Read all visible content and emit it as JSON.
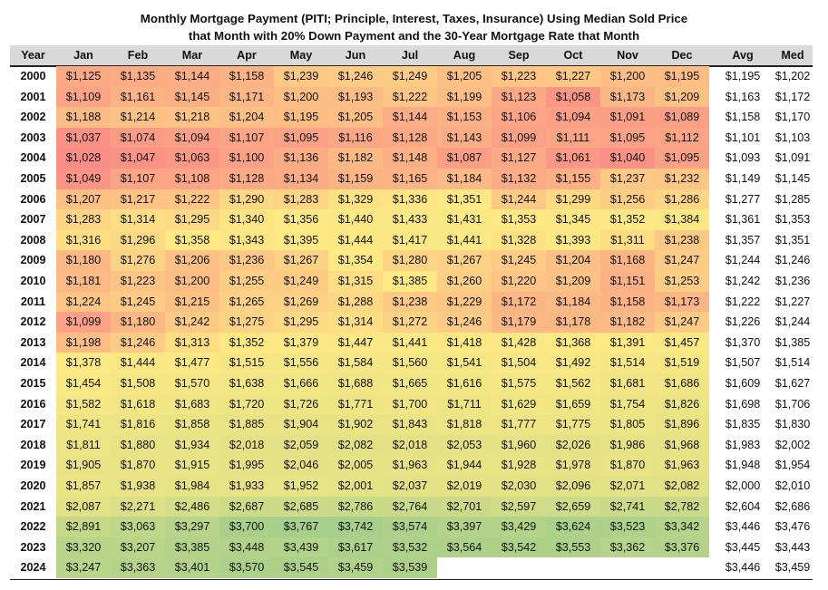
{
  "title": {
    "line1": "Monthly Mortgage Payment (PITI; Principle, Interest, Taxes, Insurance) Using Median Sold Price",
    "line2": "that Month with 20% Down Payment and the 30-Year Mortgage Rate that Month"
  },
  "colors": {
    "low": "#fa8e86",
    "mid": "#fde984",
    "high": "#a6cf8b",
    "header_bg": "#d9d9d9"
  },
  "chart_data": {
    "type": "heatmap",
    "title": "Monthly Mortgage Payment (PITI; Principle, Interest, Taxes, Insurance) Using Median Sold Price that Month with 20% Down Payment and the 30-Year Mortgage Rate that Month",
    "columns": [
      "Year",
      "Jan",
      "Feb",
      "Mar",
      "Apr",
      "May",
      "Jun",
      "Jul",
      "Aug",
      "Sep",
      "Oct",
      "Nov",
      "Dec",
      "Avg",
      "Med"
    ],
    "rows": [
      {
        "year": "2000",
        "months": [
          "$1,125",
          "$1,135",
          "$1,144",
          "$1,158",
          "$1,239",
          "$1,246",
          "$1,249",
          "$1,205",
          "$1,223",
          "$1,227",
          "$1,200",
          "$1,195"
        ],
        "avg": "$1,195",
        "med": "$1,202"
      },
      {
        "year": "2001",
        "months": [
          "$1,109",
          "$1,161",
          "$1,145",
          "$1,171",
          "$1,200",
          "$1,193",
          "$1,222",
          "$1,199",
          "$1,123",
          "$1,058",
          "$1,173",
          "$1,209"
        ],
        "avg": "$1,163",
        "med": "$1,172"
      },
      {
        "year": "2002",
        "months": [
          "$1,188",
          "$1,214",
          "$1,218",
          "$1,204",
          "$1,195",
          "$1,205",
          "$1,144",
          "$1,153",
          "$1,106",
          "$1,094",
          "$1,091",
          "$1,089"
        ],
        "avg": "$1,158",
        "med": "$1,170"
      },
      {
        "year": "2003",
        "months": [
          "$1,037",
          "$1,074",
          "$1,094",
          "$1,107",
          "$1,095",
          "$1,116",
          "$1,128",
          "$1,143",
          "$1,099",
          "$1,111",
          "$1,095",
          "$1,112"
        ],
        "avg": "$1,101",
        "med": "$1,103"
      },
      {
        "year": "2004",
        "months": [
          "$1,028",
          "$1,047",
          "$1,063",
          "$1,100",
          "$1,136",
          "$1,182",
          "$1,148",
          "$1,087",
          "$1,127",
          "$1,061",
          "$1,040",
          "$1,095"
        ],
        "avg": "$1,093",
        "med": "$1,091"
      },
      {
        "year": "2005",
        "months": [
          "$1,049",
          "$1,107",
          "$1,108",
          "$1,128",
          "$1,134",
          "$1,159",
          "$1,165",
          "$1,184",
          "$1,132",
          "$1,155",
          "$1,237",
          "$1,232"
        ],
        "avg": "$1,149",
        "med": "$1,145"
      },
      {
        "year": "2006",
        "months": [
          "$1,207",
          "$1,217",
          "$1,222",
          "$1,290",
          "$1,283",
          "$1,329",
          "$1,336",
          "$1,351",
          "$1,244",
          "$1,299",
          "$1,256",
          "$1,286"
        ],
        "avg": "$1,277",
        "med": "$1,285"
      },
      {
        "year": "2007",
        "months": [
          "$1,283",
          "$1,314",
          "$1,295",
          "$1,340",
          "$1,356",
          "$1,440",
          "$1,433",
          "$1,431",
          "$1,353",
          "$1,345",
          "$1,352",
          "$1,384"
        ],
        "avg": "$1,361",
        "med": "$1,353"
      },
      {
        "year": "2008",
        "months": [
          "$1,316",
          "$1,296",
          "$1,358",
          "$1,343",
          "$1,395",
          "$1,444",
          "$1,417",
          "$1,441",
          "$1,328",
          "$1,393",
          "$1,311",
          "$1,238"
        ],
        "avg": "$1,357",
        "med": "$1,351"
      },
      {
        "year": "2009",
        "months": [
          "$1,180",
          "$1,276",
          "$1,206",
          "$1,236",
          "$1,267",
          "$1,354",
          "$1,280",
          "$1,267",
          "$1,245",
          "$1,204",
          "$1,168",
          "$1,247"
        ],
        "avg": "$1,244",
        "med": "$1,246"
      },
      {
        "year": "2010",
        "months": [
          "$1,181",
          "$1,223",
          "$1,200",
          "$1,255",
          "$1,249",
          "$1,315",
          "$1,385",
          "$1,260",
          "$1,220",
          "$1,209",
          "$1,151",
          "$1,253"
        ],
        "avg": "$1,242",
        "med": "$1,236"
      },
      {
        "year": "2011",
        "months": [
          "$1,224",
          "$1,245",
          "$1,215",
          "$1,265",
          "$1,269",
          "$1,288",
          "$1,238",
          "$1,229",
          "$1,172",
          "$1,184",
          "$1,158",
          "$1,173"
        ],
        "avg": "$1,222",
        "med": "$1,227"
      },
      {
        "year": "2012",
        "months": [
          "$1,099",
          "$1,180",
          "$1,242",
          "$1,275",
          "$1,295",
          "$1,314",
          "$1,272",
          "$1,246",
          "$1,179",
          "$1,178",
          "$1,182",
          "$1,247"
        ],
        "avg": "$1,226",
        "med": "$1,244"
      },
      {
        "year": "2013",
        "months": [
          "$1,198",
          "$1,246",
          "$1,313",
          "$1,352",
          "$1,379",
          "$1,447",
          "$1,441",
          "$1,418",
          "$1,428",
          "$1,368",
          "$1,391",
          "$1,457"
        ],
        "avg": "$1,370",
        "med": "$1,385"
      },
      {
        "year": "2014",
        "months": [
          "$1,378",
          "$1,444",
          "$1,477",
          "$1,515",
          "$1,556",
          "$1,584",
          "$1,560",
          "$1,541",
          "$1,504",
          "$1,492",
          "$1,514",
          "$1,519"
        ],
        "avg": "$1,507",
        "med": "$1,514"
      },
      {
        "year": "2015",
        "months": [
          "$1,454",
          "$1,508",
          "$1,570",
          "$1,638",
          "$1,666",
          "$1,688",
          "$1,665",
          "$1,616",
          "$1,575",
          "$1,562",
          "$1,681",
          "$1,686"
        ],
        "avg": "$1,609",
        "med": "$1,627"
      },
      {
        "year": "2016",
        "months": [
          "$1,582",
          "$1,618",
          "$1,683",
          "$1,720",
          "$1,726",
          "$1,771",
          "$1,700",
          "$1,711",
          "$1,629",
          "$1,659",
          "$1,754",
          "$1,826"
        ],
        "avg": "$1,698",
        "med": "$1,706"
      },
      {
        "year": "2017",
        "months": [
          "$1,741",
          "$1,816",
          "$1,858",
          "$1,885",
          "$1,904",
          "$1,902",
          "$1,843",
          "$1,818",
          "$1,777",
          "$1,775",
          "$1,805",
          "$1,896"
        ],
        "avg": "$1,835",
        "med": "$1,830"
      },
      {
        "year": "2018",
        "months": [
          "$1,811",
          "$1,880",
          "$1,934",
          "$2,018",
          "$2,059",
          "$2,082",
          "$2,018",
          "$2,053",
          "$1,960",
          "$2,026",
          "$1,986",
          "$1,968"
        ],
        "avg": "$1,983",
        "med": "$2,002"
      },
      {
        "year": "2019",
        "months": [
          "$1,905",
          "$1,870",
          "$1,915",
          "$1,995",
          "$2,046",
          "$2,005",
          "$1,963",
          "$1,944",
          "$1,928",
          "$1,978",
          "$1,870",
          "$1,963"
        ],
        "avg": "$1,948",
        "med": "$1,954"
      },
      {
        "year": "2020",
        "months": [
          "$1,857",
          "$1,938",
          "$1,984",
          "$1,933",
          "$1,952",
          "$2,001",
          "$2,037",
          "$2,019",
          "$2,030",
          "$2,096",
          "$2,071",
          "$2,082"
        ],
        "avg": "$2,000",
        "med": "$2,010"
      },
      {
        "year": "2021",
        "months": [
          "$2,087",
          "$2,271",
          "$2,486",
          "$2,687",
          "$2,685",
          "$2,786",
          "$2,764",
          "$2,701",
          "$2,597",
          "$2,659",
          "$2,741",
          "$2,782"
        ],
        "avg": "$2,604",
        "med": "$2,686"
      },
      {
        "year": "2022",
        "months": [
          "$2,891",
          "$3,063",
          "$3,297",
          "$3,700",
          "$3,767",
          "$3,742",
          "$3,574",
          "$3,397",
          "$3,429",
          "$3,624",
          "$3,523",
          "$3,342"
        ],
        "avg": "$3,446",
        "med": "$3,476"
      },
      {
        "year": "2023",
        "months": [
          "$3,320",
          "$3,207",
          "$3,385",
          "$3,448",
          "$3,439",
          "$3,617",
          "$3,532",
          "$3,564",
          "$3,542",
          "$3,553",
          "$3,362",
          "$3,376"
        ],
        "avg": "$3,445",
        "med": "$3,443"
      },
      {
        "year": "2024",
        "months": [
          "$3,247",
          "$3,363",
          "$3,401",
          "$3,570",
          "$3,545",
          "$3,459",
          "$3,539"
        ],
        "avg": "$3,446",
        "med": "$3,459"
      }
    ]
  }
}
